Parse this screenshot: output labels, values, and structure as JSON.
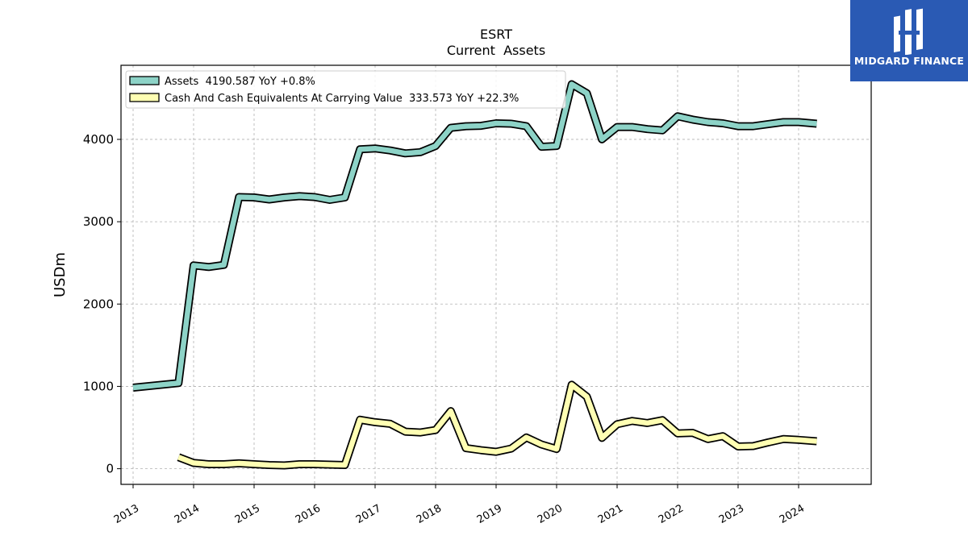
{
  "logo": {
    "text": "MIDGARD FINANCE",
    "color": "#2a5ab4"
  },
  "chart_data": {
    "type": "line",
    "title": "ESRT",
    "subtitle": "Current  Assets",
    "xlabel": "",
    "ylabel": "USDm",
    "xlim": [
      2012.8,
      2025.2
    ],
    "ylim": [
      -190,
      4900
    ],
    "yticks": [
      0,
      1000,
      2000,
      3000,
      4000
    ],
    "xticks": [
      2013,
      2014,
      2015,
      2016,
      2017,
      2018,
      2019,
      2020,
      2021,
      2022,
      2023,
      2024
    ],
    "grid": true,
    "legend_position": "top-left",
    "series": [
      {
        "name": "Assets  4190.587 YoY +0.8%",
        "color": "#8dd3c7",
        "points": [
          [
            2013.0,
            985
          ],
          [
            2013.75,
            1040
          ],
          [
            2014.0,
            2470
          ],
          [
            2014.25,
            2450
          ],
          [
            2014.5,
            2475
          ],
          [
            2014.75,
            3300
          ],
          [
            2015.0,
            3295
          ],
          [
            2015.25,
            3270
          ],
          [
            2015.5,
            3295
          ],
          [
            2015.75,
            3310
          ],
          [
            2016.0,
            3300
          ],
          [
            2016.25,
            3265
          ],
          [
            2016.5,
            3295
          ],
          [
            2016.75,
            3880
          ],
          [
            2017.0,
            3890
          ],
          [
            2017.25,
            3865
          ],
          [
            2017.5,
            3830
          ],
          [
            2017.75,
            3845
          ],
          [
            2018.0,
            3920
          ],
          [
            2018.25,
            4140
          ],
          [
            2018.5,
            4160
          ],
          [
            2018.75,
            4165
          ],
          [
            2019.0,
            4195
          ],
          [
            2019.25,
            4190
          ],
          [
            2019.5,
            4160
          ],
          [
            2019.75,
            3910
          ],
          [
            2020.0,
            3920
          ],
          [
            2020.25,
            4670
          ],
          [
            2020.5,
            4560
          ],
          [
            2020.75,
            4000
          ],
          [
            2021.0,
            4150
          ],
          [
            2021.25,
            4150
          ],
          [
            2021.5,
            4125
          ],
          [
            2021.75,
            4110
          ],
          [
            2022.0,
            4280
          ],
          [
            2022.25,
            4240
          ],
          [
            2022.5,
            4210
          ],
          [
            2022.75,
            4195
          ],
          [
            2023.0,
            4160
          ],
          [
            2023.25,
            4160
          ],
          [
            2023.5,
            4185
          ],
          [
            2023.75,
            4210
          ],
          [
            2024.0,
            4210
          ],
          [
            2024.3,
            4190
          ]
        ]
      },
      {
        "name": "Cash And Cash Equivalents At Carrying Value  333.573 YoY +22.3%",
        "color": "#ffffb3",
        "points": [
          [
            2013.75,
            140
          ],
          [
            2014.0,
            70
          ],
          [
            2014.25,
            55
          ],
          [
            2014.5,
            55
          ],
          [
            2014.75,
            65
          ],
          [
            2015.0,
            55
          ],
          [
            2015.25,
            45
          ],
          [
            2015.5,
            40
          ],
          [
            2015.75,
            55
          ],
          [
            2016.0,
            55
          ],
          [
            2016.25,
            50
          ],
          [
            2016.5,
            45
          ],
          [
            2016.75,
            595
          ],
          [
            2017.0,
            565
          ],
          [
            2017.25,
            545
          ],
          [
            2017.5,
            450
          ],
          [
            2017.75,
            440
          ],
          [
            2018.0,
            470
          ],
          [
            2018.25,
            700
          ],
          [
            2018.5,
            250
          ],
          [
            2018.75,
            225
          ],
          [
            2019.0,
            205
          ],
          [
            2019.25,
            245
          ],
          [
            2019.5,
            380
          ],
          [
            2019.75,
            295
          ],
          [
            2020.0,
            240
          ],
          [
            2020.25,
            1020
          ],
          [
            2020.5,
            875
          ],
          [
            2020.75,
            375
          ],
          [
            2021.0,
            540
          ],
          [
            2021.25,
            580
          ],
          [
            2021.5,
            555
          ],
          [
            2021.75,
            590
          ],
          [
            2022.0,
            430
          ],
          [
            2022.25,
            435
          ],
          [
            2022.5,
            360
          ],
          [
            2022.75,
            395
          ],
          [
            2023.0,
            270
          ],
          [
            2023.25,
            275
          ],
          [
            2023.5,
            320
          ],
          [
            2023.75,
            360
          ],
          [
            2024.0,
            350
          ],
          [
            2024.3,
            334
          ]
        ]
      }
    ]
  }
}
